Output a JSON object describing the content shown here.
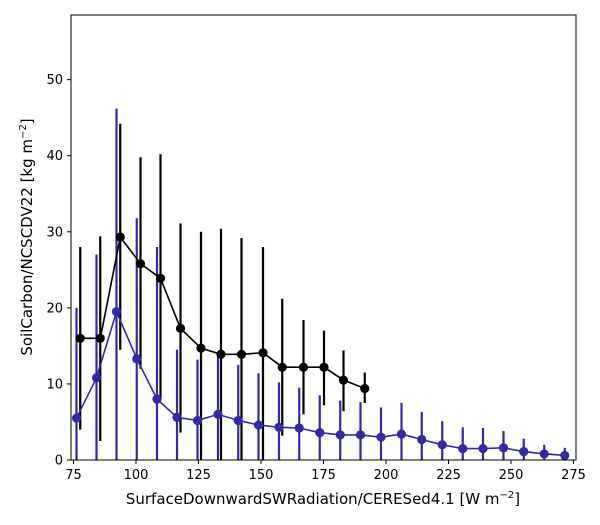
{
  "chart_data": {
    "type": "line",
    "title": "",
    "xlabel": "SurfaceDownwardSWRadiation/CERESed4.1 [W m",
    "xlabel_sup": "−2",
    "xlabel_end": "]",
    "ylabel": "SoilCarbon/NCSCDV22 [kg m",
    "ylabel_sup": "−2",
    "ylabel_end": "]",
    "xlim": [
      74,
      276
    ],
    "ylim": [
      0,
      58.5
    ],
    "xticks": [
      75,
      100,
      125,
      150,
      175,
      200,
      225,
      250,
      275
    ],
    "yticks": [
      0,
      10,
      20,
      30,
      40,
      50
    ],
    "grid": false,
    "series": [
      {
        "color": "#000000",
        "points": [
          {
            "x": 77.7,
            "y": 16.0,
            "lo": 4.0,
            "hi": 28.0
          },
          {
            "x": 85.7,
            "y": 16.0,
            "lo": 2.5,
            "hi": 29.4
          },
          {
            "x": 93.7,
            "y": 29.3,
            "lo": 14.5,
            "hi": 44.2
          },
          {
            "x": 101.8,
            "y": 25.8,
            "lo": 12.0,
            "hi": 39.8
          },
          {
            "x": 109.8,
            "y": 23.9,
            "lo": 8.0,
            "hi": 40.2
          },
          {
            "x": 117.8,
            "y": 17.3,
            "lo": 3.6,
            "hi": 31.1
          },
          {
            "x": 126.0,
            "y": 14.7,
            "lo": 0.0,
            "hi": 30.0
          },
          {
            "x": 134.0,
            "y": 13.9,
            "lo": 0.0,
            "hi": 30.4
          },
          {
            "x": 142.2,
            "y": 13.9,
            "lo": 0.0,
            "hi": 29.2
          },
          {
            "x": 150.8,
            "y": 14.1,
            "lo": 0.0,
            "hi": 28.0
          },
          {
            "x": 158.5,
            "y": 12.2,
            "lo": 3.2,
            "hi": 21.2
          },
          {
            "x": 167.0,
            "y": 12.2,
            "lo": 6.0,
            "hi": 18.4
          },
          {
            "x": 175.2,
            "y": 12.2,
            "lo": 7.2,
            "hi": 17.0
          },
          {
            "x": 183.0,
            "y": 10.5,
            "lo": 6.4,
            "hi": 14.4
          },
          {
            "x": 191.5,
            "y": 9.4,
            "lo": 7.5,
            "hi": 11.5
          }
        ]
      },
      {
        "color": "#3328a8",
        "points": [
          {
            "x": 76.2,
            "y": 5.5,
            "lo": 0.0,
            "hi": 20.0
          },
          {
            "x": 84.2,
            "y": 10.8,
            "lo": 0.0,
            "hi": 27.0
          },
          {
            "x": 92.2,
            "y": 19.5,
            "lo": 0.0,
            "hi": 46.2
          },
          {
            "x": 100.3,
            "y": 13.3,
            "lo": 0.0,
            "hi": 31.8
          },
          {
            "x": 108.4,
            "y": 8.0,
            "lo": 0.0,
            "hi": 28.0
          },
          {
            "x": 116.4,
            "y": 5.6,
            "lo": 0.0,
            "hi": 14.5
          },
          {
            "x": 124.6,
            "y": 5.2,
            "lo": 0.0,
            "hi": 13.2
          },
          {
            "x": 132.8,
            "y": 6.0,
            "lo": 0.0,
            "hi": 14.0
          },
          {
            "x": 140.9,
            "y": 5.2,
            "lo": 0.0,
            "hi": 12.5
          },
          {
            "x": 149.0,
            "y": 4.6,
            "lo": 0.0,
            "hi": 11.4
          },
          {
            "x": 157.2,
            "y": 4.3,
            "lo": 0.0,
            "hi": 10.2
          },
          {
            "x": 165.3,
            "y": 4.2,
            "lo": 0.0,
            "hi": 9.5
          },
          {
            "x": 173.5,
            "y": 3.6,
            "lo": 0.0,
            "hi": 8.5
          },
          {
            "x": 181.7,
            "y": 3.3,
            "lo": 0.0,
            "hi": 7.8
          },
          {
            "x": 189.8,
            "y": 3.3,
            "lo": 0.0,
            "hi": 7.6
          },
          {
            "x": 198.0,
            "y": 3.0,
            "lo": 0.0,
            "hi": 6.9
          },
          {
            "x": 206.2,
            "y": 3.4,
            "lo": 0.0,
            "hi": 7.5
          },
          {
            "x": 214.3,
            "y": 2.7,
            "lo": 0.0,
            "hi": 6.3
          },
          {
            "x": 222.5,
            "y": 2.0,
            "lo": 0.0,
            "hi": 5.1
          },
          {
            "x": 230.7,
            "y": 1.5,
            "lo": 0.0,
            "hi": 4.3
          },
          {
            "x": 238.8,
            "y": 1.5,
            "lo": 0.0,
            "hi": 4.2
          },
          {
            "x": 247.0,
            "y": 1.6,
            "lo": 0.0,
            "hi": 3.8
          },
          {
            "x": 255.1,
            "y": 1.1,
            "lo": 0.0,
            "hi": 2.8
          },
          {
            "x": 263.3,
            "y": 0.8,
            "lo": 0.0,
            "hi": 2.0
          },
          {
            "x": 271.5,
            "y": 0.6,
            "lo": 0.0,
            "hi": 1.6
          }
        ]
      }
    ]
  }
}
